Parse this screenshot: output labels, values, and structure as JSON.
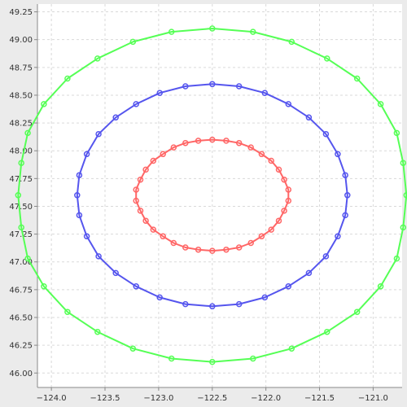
{
  "chart_data": {
    "type": "scatter",
    "title": "",
    "xlabel": "",
    "ylabel": "",
    "xlim": [
      -124.13,
      -120.73
    ],
    "ylim": [
      45.87,
      49.32
    ],
    "grid": true,
    "legend": "none",
    "plot_background": "#ffffff",
    "grid_color": "#d9d9d9",
    "x_ticks": [
      -124.0,
      -123.5,
      -123.0,
      -122.5,
      -122.0,
      -121.5,
      -121.0
    ],
    "x_tick_labels": [
      "−124.0",
      "−123.5",
      "−123.0",
      "−122.5",
      "−122.0",
      "−121.5",
      "−121.0"
    ],
    "y_ticks": [
      46.0,
      46.25,
      46.5,
      46.75,
      47.0,
      47.25,
      47.5,
      47.75,
      48.0,
      48.25,
      48.5,
      48.75,
      49.0,
      49.25
    ],
    "y_tick_labels": [
      "46.00",
      "46.25",
      "46.50",
      "46.75",
      "47.00",
      "47.25",
      "47.50",
      "47.75",
      "48.00",
      "48.25",
      "48.50",
      "48.75",
      "49.00",
      "49.25"
    ],
    "series": [
      {
        "color": "#ff6666",
        "center": [
          -122.5,
          47.6
        ],
        "radius_deg": 0.5,
        "points": [
          [
            -122.5,
            48.1
          ],
          [
            -122.37,
            48.09
          ],
          [
            -122.25,
            48.07
          ],
          [
            -122.14,
            48.03
          ],
          [
            -122.04,
            47.97
          ],
          [
            -121.95,
            47.91
          ],
          [
            -121.88,
            47.83
          ],
          [
            -121.83,
            47.74
          ],
          [
            -121.79,
            47.65
          ],
          [
            -121.79,
            47.55
          ],
          [
            -121.83,
            47.46
          ],
          [
            -121.88,
            47.37
          ],
          [
            -121.95,
            47.29
          ],
          [
            -122.04,
            47.23
          ],
          [
            -122.14,
            47.17
          ],
          [
            -122.25,
            47.13
          ],
          [
            -122.37,
            47.11
          ],
          [
            -122.5,
            47.1
          ],
          [
            -122.63,
            47.11
          ],
          [
            -122.75,
            47.13
          ],
          [
            -122.86,
            47.17
          ],
          [
            -122.96,
            47.23
          ],
          [
            -123.05,
            47.29
          ],
          [
            -123.12,
            47.37
          ],
          [
            -123.17,
            47.46
          ],
          [
            -123.21,
            47.55
          ],
          [
            -123.21,
            47.65
          ],
          [
            -123.17,
            47.74
          ],
          [
            -123.12,
            47.83
          ],
          [
            -123.05,
            47.91
          ],
          [
            -122.96,
            47.97
          ],
          [
            -122.86,
            48.03
          ],
          [
            -122.75,
            48.07
          ],
          [
            -122.63,
            48.09
          ]
        ]
      },
      {
        "color": "#5555ee",
        "center": [
          -122.5,
          47.6
        ],
        "radius_deg": 1.0,
        "points": [
          [
            -122.5,
            48.6
          ],
          [
            -122.25,
            48.58
          ],
          [
            -122.01,
            48.52
          ],
          [
            -121.79,
            48.42
          ],
          [
            -121.6,
            48.3
          ],
          [
            -121.44,
            48.15
          ],
          [
            -121.33,
            47.97
          ],
          [
            -121.26,
            47.78
          ],
          [
            -121.24,
            47.6
          ],
          [
            -121.26,
            47.42
          ],
          [
            -121.33,
            47.23
          ],
          [
            -121.44,
            47.05
          ],
          [
            -121.6,
            46.9
          ],
          [
            -121.79,
            46.78
          ],
          [
            -122.01,
            46.68
          ],
          [
            -122.25,
            46.62
          ],
          [
            -122.5,
            46.6
          ],
          [
            -122.75,
            46.62
          ],
          [
            -122.99,
            46.68
          ],
          [
            -123.21,
            46.78
          ],
          [
            -123.4,
            46.9
          ],
          [
            -123.56,
            47.05
          ],
          [
            -123.67,
            47.23
          ],
          [
            -123.74,
            47.42
          ],
          [
            -123.76,
            47.6
          ],
          [
            -123.74,
            47.78
          ],
          [
            -123.67,
            47.97
          ],
          [
            -123.56,
            48.15
          ],
          [
            -123.4,
            48.3
          ],
          [
            -123.21,
            48.42
          ],
          [
            -122.99,
            48.52
          ],
          [
            -122.75,
            48.58
          ]
        ]
      },
      {
        "color": "#55ff55",
        "center": [
          -122.5,
          47.6
        ],
        "radius_deg": 1.5,
        "points": [
          [
            -122.5,
            49.1
          ],
          [
            -122.12,
            49.07
          ],
          [
            -121.76,
            48.98
          ],
          [
            -121.43,
            48.83
          ],
          [
            -121.15,
            48.65
          ],
          [
            -120.93,
            48.42
          ],
          [
            -120.78,
            48.16
          ],
          [
            -120.72,
            47.89
          ],
          [
            -120.69,
            47.6
          ],
          [
            -120.72,
            47.31
          ],
          [
            -120.78,
            47.03
          ],
          [
            -120.93,
            46.78
          ],
          [
            -121.15,
            46.55
          ],
          [
            -121.43,
            46.37
          ],
          [
            -121.76,
            46.22
          ],
          [
            -122.12,
            46.13
          ],
          [
            -122.5,
            46.1
          ],
          [
            -122.88,
            46.13
          ],
          [
            -123.24,
            46.22
          ],
          [
            -123.57,
            46.37
          ],
          [
            -123.85,
            46.55
          ],
          [
            -124.07,
            46.78
          ],
          [
            -124.22,
            47.03
          ],
          [
            -124.28,
            47.31
          ],
          [
            -124.31,
            47.6
          ],
          [
            -124.28,
            47.89
          ],
          [
            -124.22,
            48.16
          ],
          [
            -124.07,
            48.42
          ],
          [
            -123.85,
            48.65
          ],
          [
            -123.57,
            48.83
          ],
          [
            -123.24,
            48.98
          ],
          [
            -122.88,
            49.07
          ]
        ]
      }
    ]
  }
}
